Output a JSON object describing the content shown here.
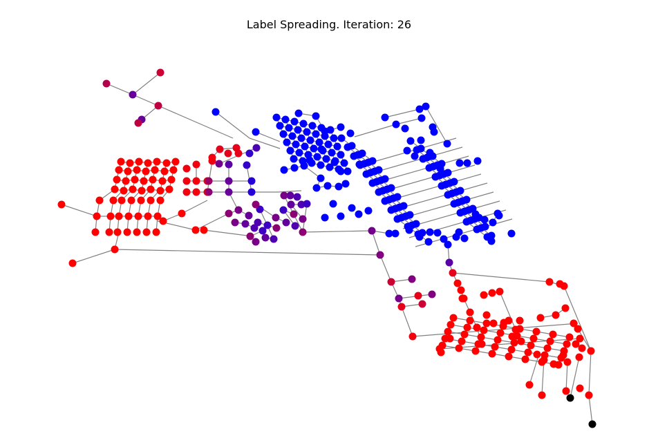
{
  "figure": {
    "title": "Label Spreading. Iteration: 26"
  },
  "colors": {
    "edge": "#808080",
    "class_red": "#ff0000",
    "class_blue": "#0000ff",
    "unlabeled": "#000000"
  },
  "graph": {
    "type": "network",
    "node_color_scale": "red-to-blue by label score",
    "unlabeled_nodes_shown_in_black": 2
  }
}
